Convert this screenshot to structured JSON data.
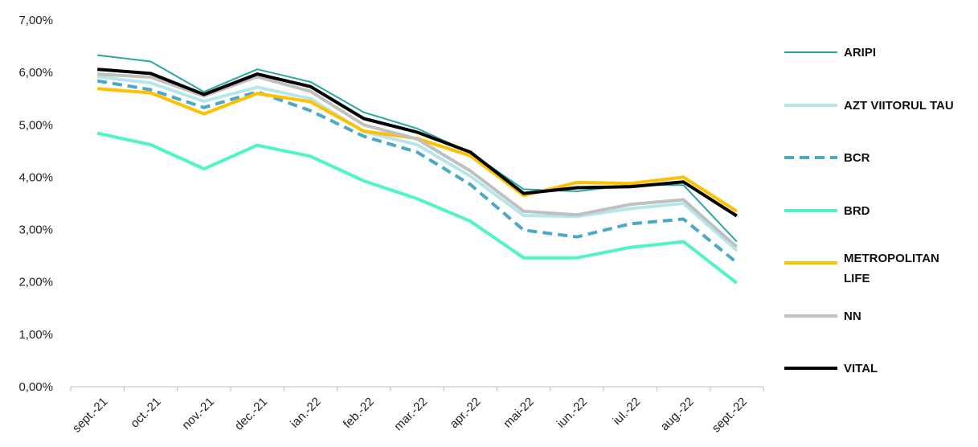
{
  "chart_data": {
    "type": "line",
    "title": "",
    "xlabel": "",
    "ylabel": "",
    "categories": [
      "sept.-21",
      "oct.-21",
      "nov.-21",
      "dec.-21",
      "ian.-22",
      "feb.-22",
      "mar.-22",
      "apr.-22",
      "mai-22",
      "iun.-22",
      "iul.-22",
      "aug.-22",
      "sept.-22"
    ],
    "y_ticks": [
      "0,00%",
      "1,00%",
      "2,00%",
      "3,00%",
      "4,00%",
      "5,00%",
      "6,00%",
      "7,00%"
    ],
    "ylim": [
      0,
      7
    ],
    "grid": false,
    "legend_position": "right",
    "series": [
      {
        "name": "ARIPI",
        "color": "#2aa8a0",
        "dash": "solid",
        "width": 2,
        "values": [
          6.33,
          6.21,
          5.63,
          6.06,
          5.82,
          5.24,
          4.93,
          4.47,
          3.77,
          3.73,
          3.85,
          3.85,
          2.77
        ]
      },
      {
        "name": "AZT VIITORUL TAU",
        "color": "#b7e6ea",
        "dash": "solid",
        "width": 4,
        "values": [
          5.92,
          5.8,
          5.45,
          5.72,
          5.5,
          4.87,
          4.62,
          4.02,
          3.27,
          3.25,
          3.4,
          3.5,
          2.6
        ]
      },
      {
        "name": "BCR",
        "color": "#4ba8c6",
        "dash": "dashed",
        "width": 4,
        "values": [
          5.84,
          5.67,
          5.33,
          5.63,
          5.27,
          4.78,
          4.48,
          3.86,
          2.99,
          2.86,
          3.11,
          3.2,
          2.37
        ]
      },
      {
        "name": "BRD",
        "color": "#4ff5c6",
        "dash": "solid",
        "width": 4,
        "values": [
          4.84,
          4.62,
          4.16,
          4.61,
          4.4,
          3.93,
          3.59,
          3.16,
          2.46,
          2.46,
          2.66,
          2.77,
          1.98
        ]
      },
      {
        "name": "METROPOLITAN LIFE",
        "legend_lines": [
          "METROPOLITAN",
          "LIFE"
        ],
        "color": "#ffc000",
        "dash": "solid",
        "width": 4,
        "values": [
          5.69,
          5.61,
          5.21,
          5.6,
          5.44,
          4.88,
          4.74,
          4.41,
          3.65,
          3.9,
          3.88,
          4.0,
          3.35
        ]
      },
      {
        "name": "NN",
        "color": "#c0c0c0",
        "dash": "solid",
        "width": 4,
        "values": [
          5.97,
          5.91,
          5.55,
          5.92,
          5.64,
          5.0,
          4.73,
          4.12,
          3.35,
          3.28,
          3.48,
          3.57,
          2.67
        ]
      },
      {
        "name": "VITAL",
        "color": "#000000",
        "dash": "solid",
        "width": 4,
        "values": [
          6.06,
          5.98,
          5.58,
          5.97,
          5.73,
          5.12,
          4.86,
          4.48,
          3.69,
          3.8,
          3.82,
          3.91,
          3.26
        ]
      }
    ]
  }
}
